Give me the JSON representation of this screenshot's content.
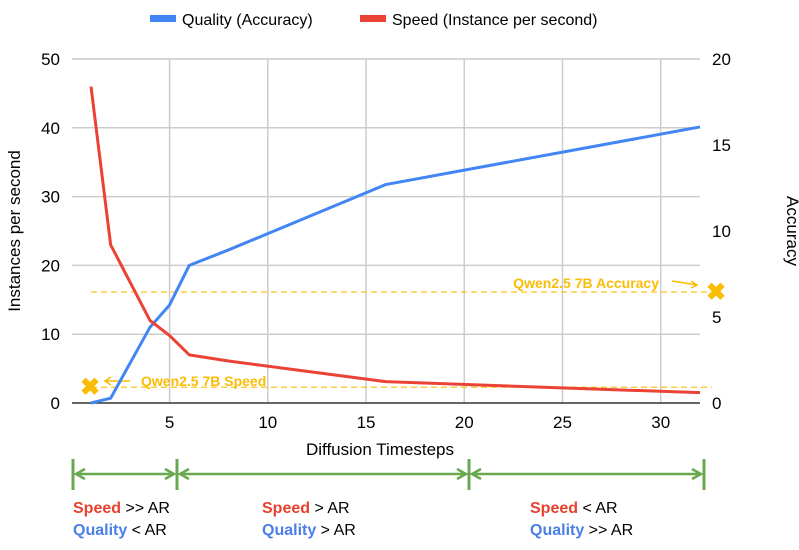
{
  "chart_data": {
    "type": "line",
    "xlabel": "Diffusion Timesteps",
    "ylabel": "Instances per second",
    "y2label": "Accuracy",
    "xlim": [
      1,
      32
    ],
    "ylim": [
      0,
      50
    ],
    "y2lim": [
      0,
      20
    ],
    "xticks": [
      5,
      10,
      15,
      20,
      25,
      30
    ],
    "yticks": [
      0,
      10,
      20,
      30,
      40,
      50
    ],
    "y2ticks": [
      0,
      5,
      10,
      15,
      20
    ],
    "grid": true,
    "legend": "top",
    "series": [
      {
        "name": "Quality (Accuracy)",
        "axis": "right",
        "color": "#4285f4",
        "x": [
          1,
          2,
          4,
          5,
          6,
          8,
          16,
          32
        ],
        "y": [
          0,
          0.28,
          4.4,
          5.7,
          8,
          8.9,
          12.7,
          16.05
        ]
      },
      {
        "name": "Speed (Instance per second)",
        "axis": "left",
        "color": "#ea4335",
        "x": [
          1,
          2,
          4,
          5,
          6,
          8,
          16,
          32
        ],
        "y": [
          46,
          23,
          12,
          9.8,
          7,
          6.1,
          3.1,
          1.5
        ]
      }
    ],
    "references": [
      {
        "label": "Qwen2.5 7B Speed",
        "axis": "left",
        "value": 2.3,
        "color": "#fbbc04"
      },
      {
        "label": "Qwen2.5 7B Accuracy",
        "axis": "right",
        "value": 6.45,
        "color": "#fbbc04"
      }
    ]
  },
  "annotations": [
    {
      "speed_word": "Speed",
      "speed_rel": " >> AR",
      "quality_word": "Quality",
      "quality_rel": " < AR"
    },
    {
      "speed_word": "Speed",
      "speed_rel": " > AR",
      "quality_word": "Quality",
      "quality_rel": " > AR"
    },
    {
      "speed_word": "Speed",
      "speed_rel": " < AR",
      "quality_word": "Quality",
      "quality_rel": " >> AR"
    }
  ]
}
